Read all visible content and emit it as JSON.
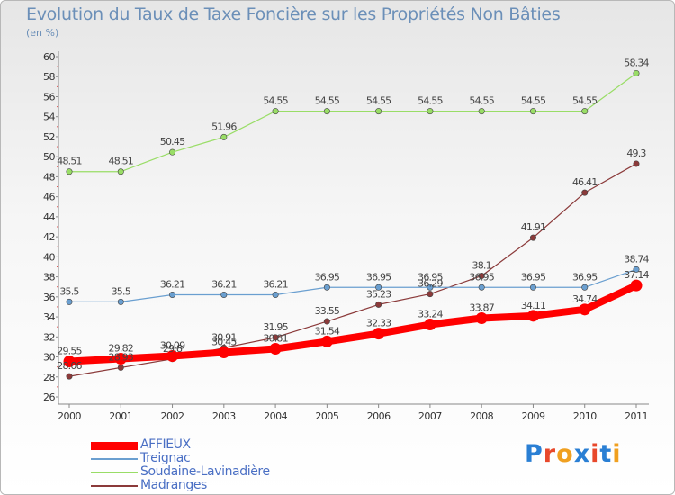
{
  "title": "Evolution du Taux de Taxe Foncière sur les Propriétés Non Bâties",
  "subtitle": "(en %)",
  "logo": {
    "text": "Proxiti",
    "colors": [
      "#2a7fd4",
      "#e8482b",
      "#f0a020",
      "#2a7fd4",
      "#e8482b",
      "#2a7fd4",
      "#f0a020"
    ]
  },
  "chart_data": {
    "type": "line",
    "title": "Evolution du Taux de Taxe Foncière sur les Propriétés Non Bâties",
    "ylabel": "(en %)",
    "xlabel": "",
    "ylim": [
      26,
      60
    ],
    "grid": false,
    "legend_position": "bottom-left",
    "x": [
      "2000",
      "2001",
      "2002",
      "2003",
      "2004",
      "2005",
      "2006",
      "2007",
      "2008",
      "2009",
      "2010",
      "2011"
    ],
    "yticks": [
      "26",
      "28",
      "30",
      "32",
      "34",
      "36",
      "38",
      "40",
      "42",
      "44",
      "46",
      "48",
      "50",
      "52",
      "54",
      "56",
      "58",
      "60"
    ],
    "series": [
      {
        "name": "AFFIEUX",
        "color": "#ff0000",
        "values": [
          29.55,
          29.82,
          30.09,
          30.45,
          30.81,
          31.54,
          32.33,
          33.24,
          33.87,
          34.11,
          34.74,
          37.14
        ],
        "labels": [
          "29.55",
          "29.82",
          "30.09",
          "30.45",
          "30.81",
          "31.54",
          "32.33",
          "33.24",
          "33.87",
          "34.11",
          "34.74",
          "37.14"
        ]
      },
      {
        "name": "Treignac",
        "color": "#6a9fd0",
        "values": [
          35.5,
          35.5,
          36.21,
          36.21,
          36.21,
          36.95,
          36.95,
          36.95,
          36.95,
          36.95,
          36.95,
          38.74
        ],
        "labels": [
          "35.5",
          "35.5",
          "36.21",
          "36.21",
          "36.21",
          "36.95",
          "36.95",
          "36.95",
          "36.95",
          "36.95",
          "36.95",
          "38.74"
        ]
      },
      {
        "name": "Soudaine-Lavinadière",
        "color": "#99dd66",
        "values": [
          48.51,
          48.51,
          50.45,
          51.96,
          54.55,
          54.55,
          54.55,
          54.55,
          54.55,
          54.55,
          54.55,
          58.34
        ],
        "labels": [
          "48.51",
          "48.51",
          "50.45",
          "51.96",
          "54.55",
          "54.55",
          "54.55",
          "54.55",
          "54.55",
          "54.55",
          "54.55",
          "58.34"
        ]
      },
      {
        "name": "Madranges",
        "color": "#8b3a3a",
        "values": [
          28.06,
          28.93,
          29.8,
          30.91,
          31.95,
          33.55,
          35.23,
          36.29,
          38.1,
          41.91,
          46.41,
          49.3
        ],
        "labels": [
          "28.06",
          "28.93",
          "29.8",
          "30.91",
          "31.95",
          "33.55",
          "35.23",
          "36.29",
          "38.1",
          "41.91",
          "46.41",
          "49.3"
        ]
      }
    ]
  }
}
